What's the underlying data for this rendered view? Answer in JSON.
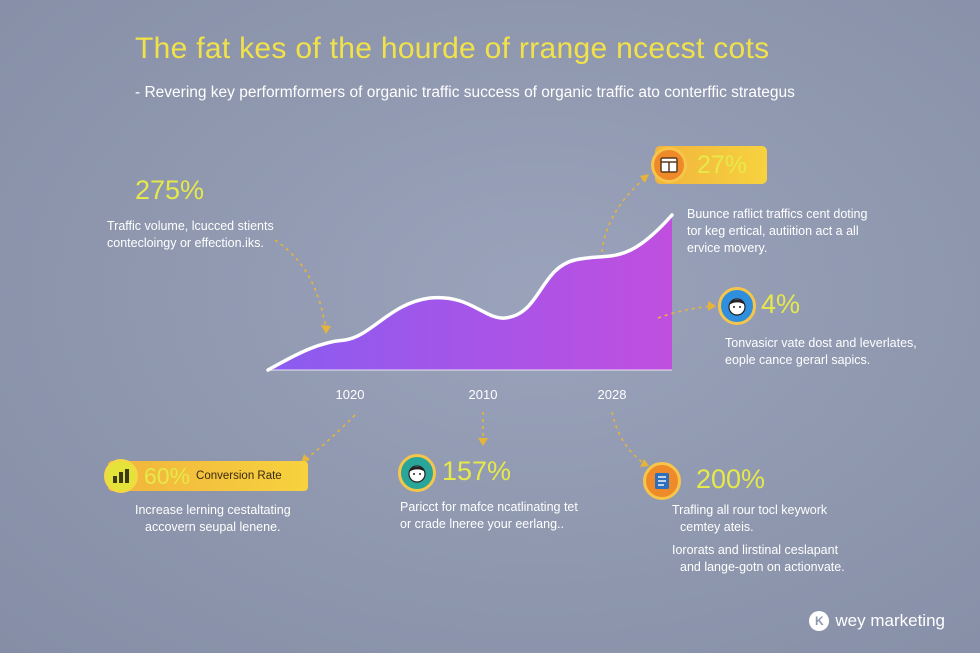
{
  "header": {
    "title": "The fat kes of the hourde of rrange ncecst cots",
    "subtitle": "- Revering key performformers of organic traffic success of organic traffic ato conterffic strategus"
  },
  "callouts": {
    "left_stat": {
      "value": "275%",
      "text_line1": "Traffic volume, lcucced stients",
      "text_line2": "contecloingy or effection.iks."
    },
    "top_right": {
      "value": "27%",
      "icon": "browser-window-icon",
      "text_line1": "Buunce raflict traffics cent doting",
      "text_line2": "tor keg ertical, autiition act a all",
      "text_line3": "ervice movery."
    },
    "mid_right": {
      "value": "4%",
      "icon": "person-face-icon",
      "text_line1": "Tonvasicr vate dost and leverlates,",
      "text_line2": "eople cance gerarl sapics."
    },
    "bottom_left": {
      "value": "60%",
      "label": "Conversion Rate",
      "icon": "bar-chart-icon",
      "text_line1": "Increase lerning cestaltating",
      "text_line2": "accovern seupal lenene."
    },
    "bottom_center": {
      "value": "157%",
      "icon": "person-face-icon",
      "text_line1": "Paricct for mafce ncatlinating tet",
      "text_line2": "or crade lneree your eerlang.."
    },
    "bottom_right": {
      "value": "200%",
      "icon": "document-icon",
      "text_line1": "Trafling all rour tocl keywork",
      "text_line2": "cemtey ateis.",
      "text_line3": "Iororats and lirstinal ceslapant",
      "text_line4": "and lange-gotn on actionvate."
    }
  },
  "chart_data": {
    "type": "area",
    "x_labels": [
      "1020",
      "2010",
      "2028"
    ],
    "fill_colors": [
      "#8a5cf0",
      "#c04fe0"
    ],
    "line_color": "#ffffff"
  },
  "colors": {
    "title": "#f2e24a",
    "accent_yellow": "#e6e94a",
    "orange": "#ee8a2a",
    "blue": "#2f8fdc",
    "teal": "#2aa59a",
    "dotted_line": "#e6b43a"
  },
  "brand": {
    "mark": "K",
    "name": "wey marketing"
  }
}
